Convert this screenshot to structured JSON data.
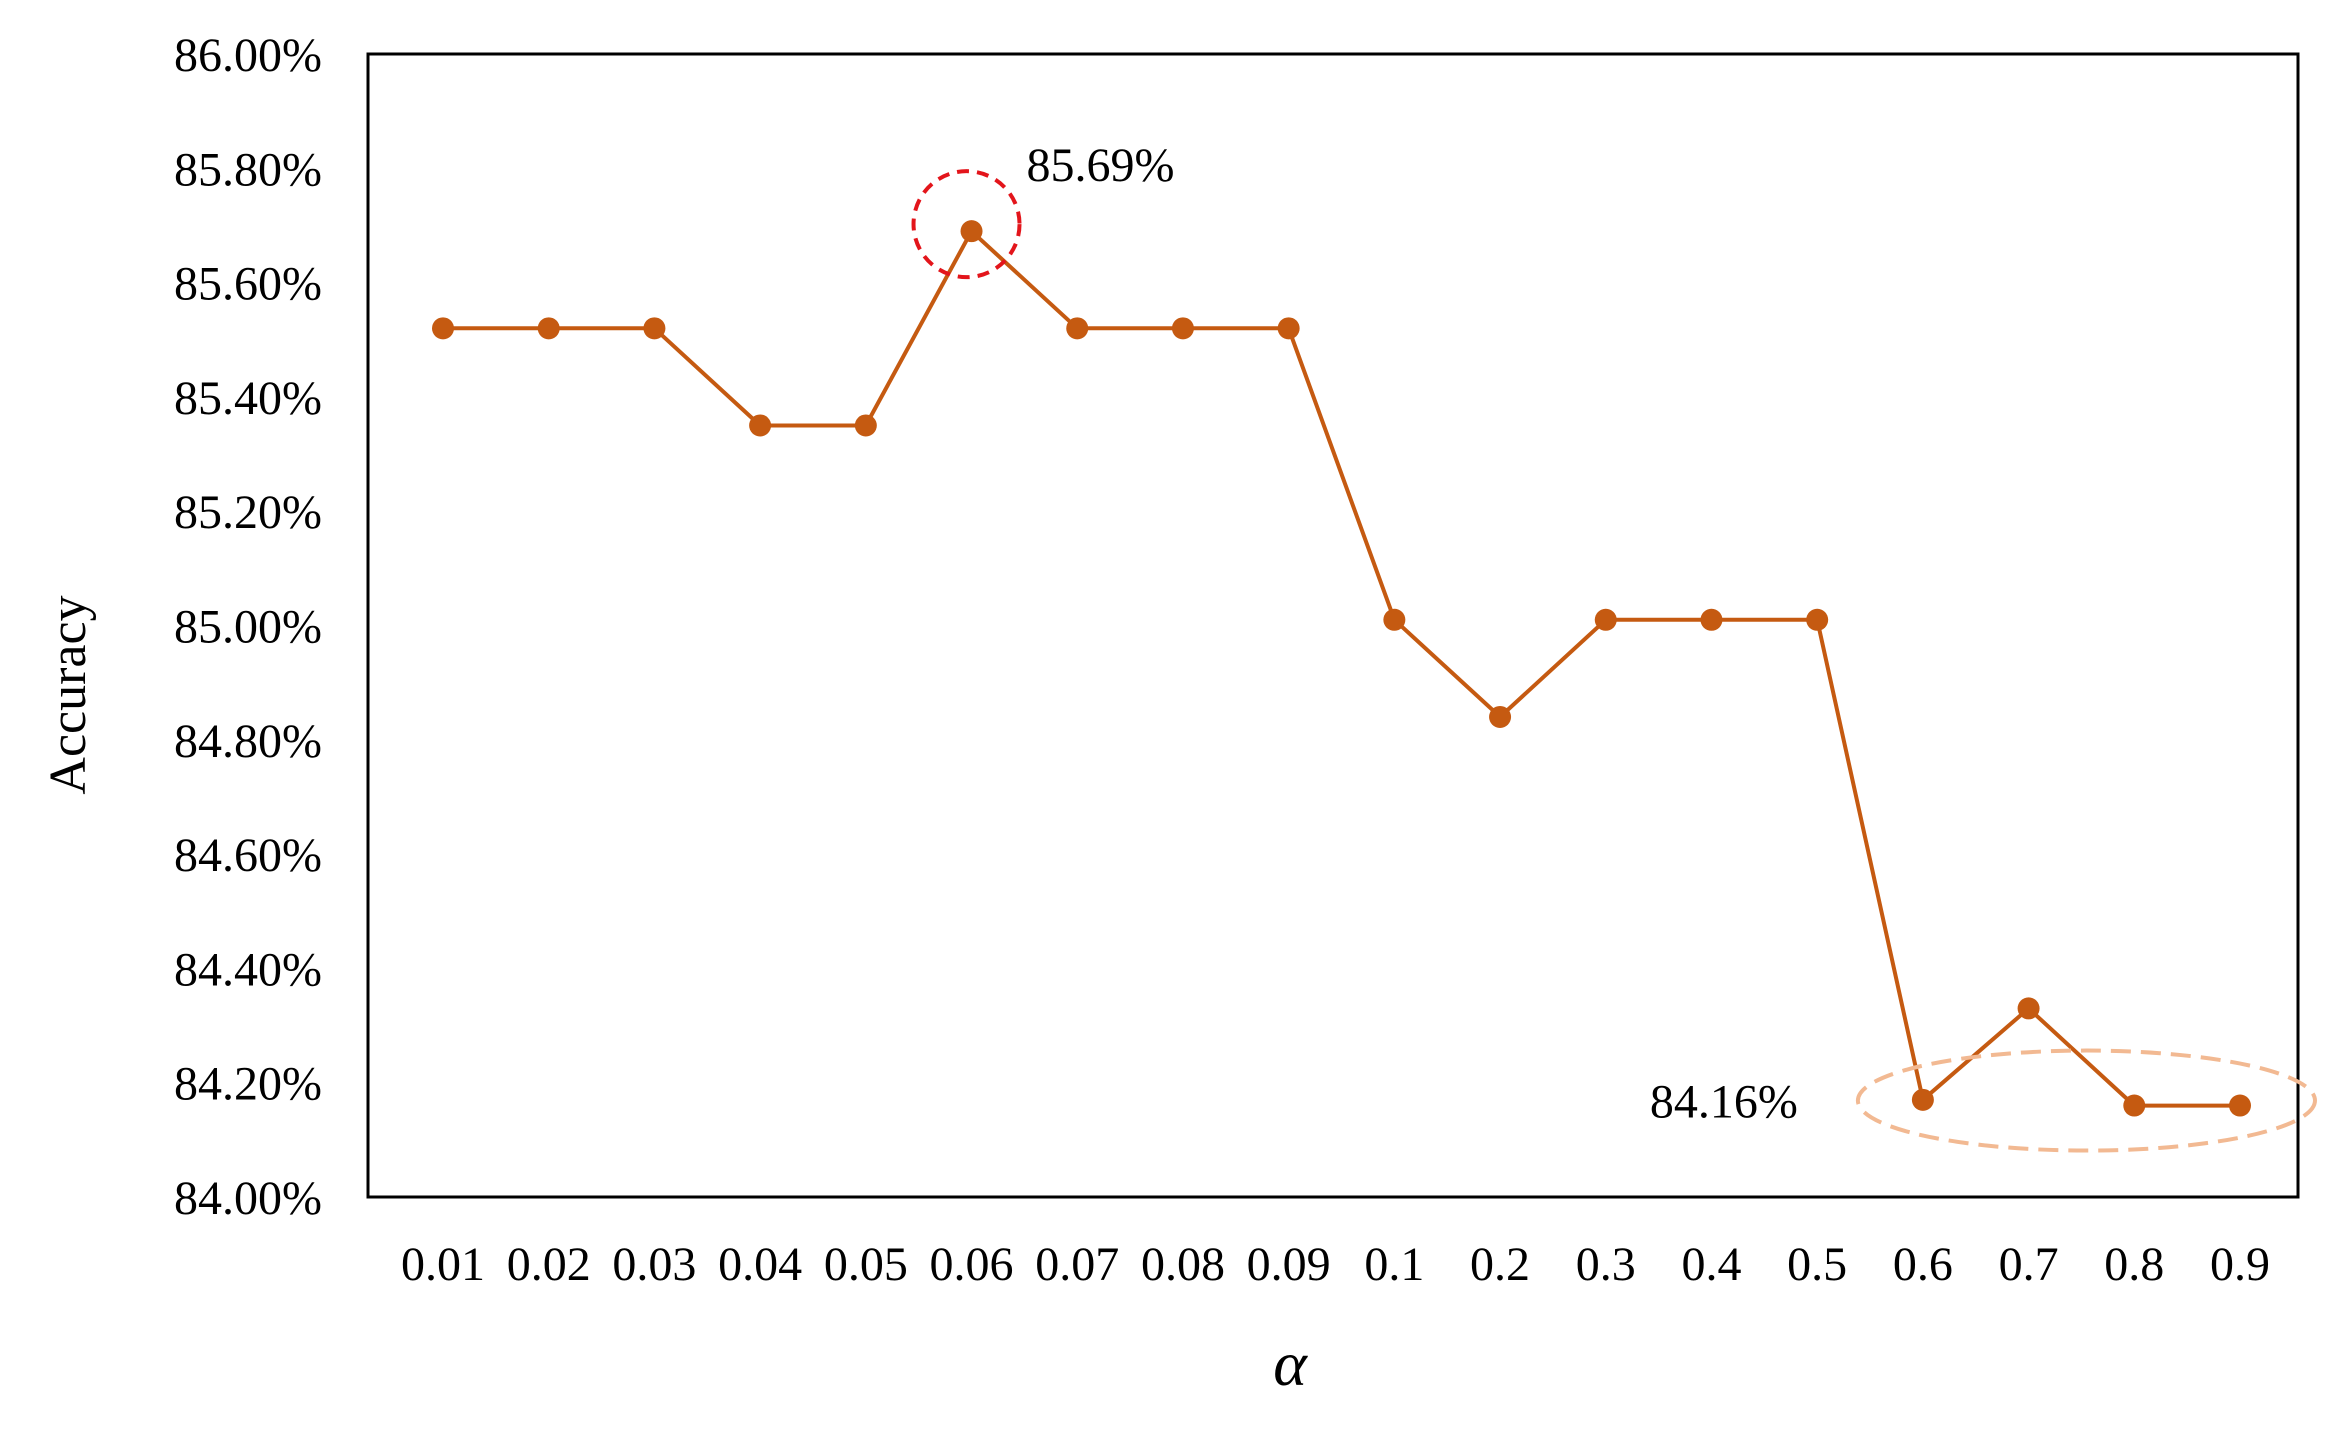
{
  "chart_data": {
    "type": "line",
    "title": "",
    "xlabel": "α",
    "ylabel": "Accuracy",
    "categories": [
      "0.01",
      "0.02",
      "0.03",
      "0.04",
      "0.05",
      "0.06",
      "0.07",
      "0.08",
      "0.09",
      "0.1",
      "0.2",
      "0.3",
      "0.4",
      "0.5",
      "0.6",
      "0.7",
      "0.8",
      "0.9"
    ],
    "series": [
      {
        "name": "Accuracy",
        "values": [
          85.52,
          85.52,
          85.52,
          85.35,
          85.35,
          85.69,
          85.52,
          85.52,
          85.52,
          85.01,
          84.84,
          85.01,
          85.01,
          85.01,
          84.17,
          84.33,
          84.16,
          84.16
        ]
      }
    ],
    "ylim": [
      84.0,
      86.0
    ],
    "yticks": [
      84.0,
      84.2,
      84.4,
      84.6,
      84.8,
      85.0,
      85.2,
      85.4,
      85.6,
      85.8,
      86.0
    ],
    "ytick_labels": [
      "84.00%",
      "84.20%",
      "84.40%",
      "84.60%",
      "84.80%",
      "85.00%",
      "85.20%",
      "85.40%",
      "85.60%",
      "85.80%",
      "86.00%"
    ],
    "grid": false,
    "legend": "none",
    "annotations": [
      {
        "text": "85.69%",
        "category": "0.06",
        "value": 85.69,
        "highlight": "circle",
        "color": "#e3151b"
      },
      {
        "text": "84.16%",
        "categories": [
          "0.6",
          "0.9"
        ],
        "value": 84.16,
        "highlight": "ellipse",
        "color": "#f2b992"
      }
    ],
    "colors": {
      "line": "#c55a11",
      "marker": "#c55a11",
      "axes": "#000000"
    }
  }
}
